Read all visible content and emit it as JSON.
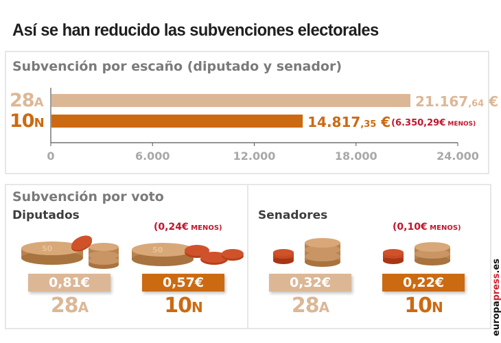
{
  "title": "Así se han reducido las subvenciones electorales",
  "colors": {
    "a28": "#dcb796",
    "n10": "#cc6a12",
    "menos": "#c0162b",
    "axis": "#555555",
    "tick_text": "#a8a8a8"
  },
  "chart_data": {
    "type": "bar",
    "orientation": "horizontal",
    "title": "Subvención por escaño (diputado y senador)",
    "categories": [
      "28A",
      "10N"
    ],
    "category_labels": [
      {
        "main": "28",
        "suffix": "A"
      },
      {
        "main": "10",
        "suffix": "N"
      }
    ],
    "values": [
      21167.64,
      14817.35
    ],
    "value_labels": [
      {
        "main": "21.167",
        "decimals": ",64",
        "unit": " €"
      },
      {
        "main": "14.817",
        "decimals": ",35",
        "unit": " €"
      }
    ],
    "annotation": {
      "amount": "(6.350,29€",
      "word": " MENOS)"
    },
    "xlim": [
      0,
      24000
    ],
    "xticks": [
      0,
      6000,
      12000,
      18000,
      24000
    ],
    "xtick_labels": [
      "0",
      "6.000",
      "12.000",
      "18.000",
      "24.000"
    ],
    "xlabel": "",
    "ylabel": "",
    "grid": false
  },
  "por_voto": {
    "title": "Subvención por voto",
    "diputados": {
      "title": "Diputados",
      "a28": {
        "value": "0,81€",
        "label_main": "28",
        "label_suffix": "A"
      },
      "n10": {
        "value": "0,57€",
        "label_main": "10",
        "label_suffix": "N",
        "menos_amount": "(0,24€",
        "menos_word": " MENOS)"
      }
    },
    "senadores": {
      "title": "Senadores",
      "a28": {
        "value": "0,32€",
        "label_main": "28",
        "label_suffix": "A"
      },
      "n10": {
        "value": "0,22€",
        "label_main": "10",
        "label_suffix": "N",
        "menos_amount": "(0,10€",
        "menos_word": " MENOS)"
      }
    }
  },
  "credit": {
    "part1": "europa",
    "part2": "press",
    "part3": ".es"
  }
}
